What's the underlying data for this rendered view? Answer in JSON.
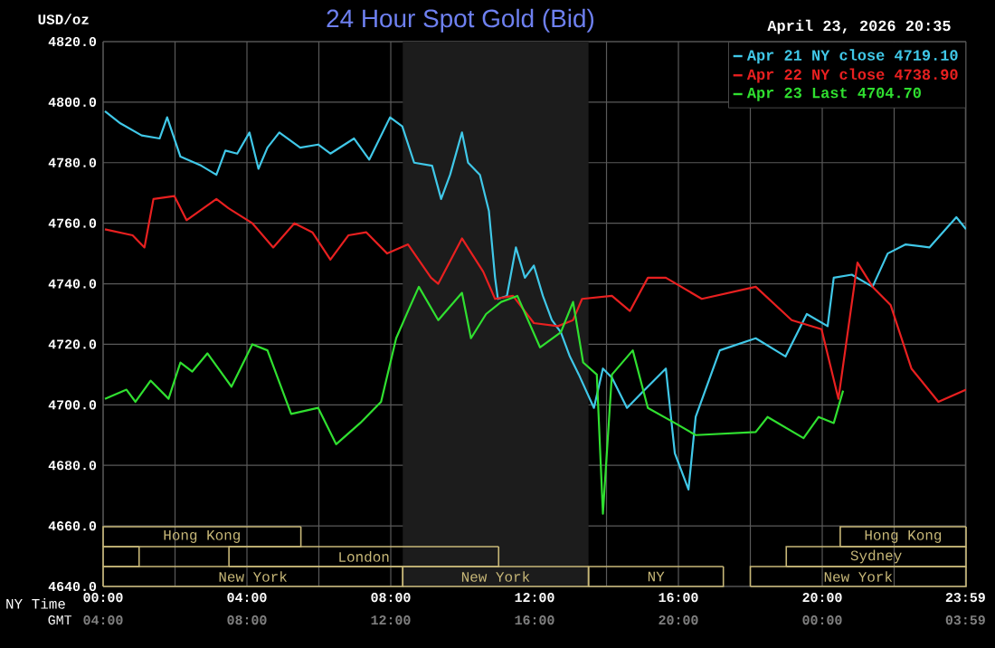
{
  "chart_data": {
    "type": "line",
    "title": "24 Hour Spot Gold (Bid)",
    "subtitle": "April 23, 2026 20:35",
    "ylabel": "USD/oz",
    "xlabel": "NY Time",
    "xlim": [
      0,
      24
    ],
    "ylim": [
      4640,
      4820
    ],
    "xticks": [
      {
        "value": 0,
        "label": "00:00"
      },
      {
        "value": 2,
        "label": null
      },
      {
        "value": 4,
        "label": "04:00"
      },
      {
        "value": 6,
        "label": null
      },
      {
        "value": 8,
        "label": "08:00"
      },
      {
        "value": 10,
        "label": null
      },
      {
        "value": 12,
        "label": "12:00"
      },
      {
        "value": 14,
        "label": null
      },
      {
        "value": 16,
        "label": "16:00"
      },
      {
        "value": 18,
        "label": null
      },
      {
        "value": 20,
        "label": "20:00"
      },
      {
        "value": 22,
        "label": null
      },
      {
        "value": 23.983,
        "label": "23:59"
      }
    ],
    "yticks": [
      {
        "value": 4640,
        "label": "4640.0"
      },
      {
        "value": 4660,
        "label": "4660.0"
      },
      {
        "value": 4680,
        "label": "4680.0"
      },
      {
        "value": 4700,
        "label": "4700.0"
      },
      {
        "value": 4720,
        "label": "4720.0"
      },
      {
        "value": 4740,
        "label": "4740.0"
      },
      {
        "value": 4760,
        "label": "4760.0"
      },
      {
        "value": 4780,
        "label": "4780.0"
      },
      {
        "value": 4800,
        "label": "4800.0"
      },
      {
        "value": 4820,
        "label": "4820.0"
      }
    ],
    "grid": true,
    "legend": "top right",
    "bands": [
      {
        "axis": "x",
        "from": 8.333,
        "to": 13.5,
        "color": "#1c1c1c"
      }
    ],
    "annotations": [
      "New York",
      "New York",
      "NY",
      "New York",
      "London",
      "Sydney",
      "Hong Kong",
      "Hong Kong",
      "GMT",
      "04:00",
      "08:00",
      "12:00",
      "16:00",
      "20:00",
      "00:00",
      "03:59"
    ],
    "series": [
      {
        "name": "Apr 21 NY close 4719.10",
        "color": "#40c8e8",
        "x": [
          0.05,
          0.48,
          1.07,
          1.57,
          1.78,
          2.15,
          2.73,
          3.15,
          3.4,
          3.73,
          4.07,
          4.32,
          4.57,
          4.9,
          5.48,
          5.98,
          6.32,
          6.98,
          7.4,
          7.98,
          8.32,
          8.65,
          9.15,
          9.4,
          9.65,
          9.98,
          10.15,
          10.48,
          10.73,
          10.9,
          10.98,
          11.23,
          11.48,
          11.73,
          11.98,
          12.23,
          12.48,
          12.73,
          12.98,
          13.23,
          13.65,
          13.9,
          14.15,
          14.57,
          14.98,
          15.65,
          15.9,
          16.28,
          16.48,
          17.15,
          18.15,
          18.98,
          19.57,
          20.15,
          20.32,
          20.82,
          21.4,
          21.82,
          22.32,
          22.98,
          23.73,
          24
        ],
        "values": [
          4797,
          4793,
          4789,
          4788,
          4795,
          4782,
          4779,
          4776,
          4784,
          4783,
          4790,
          4778,
          4785,
          4790,
          4785,
          4786,
          4783,
          4788,
          4781,
          4795,
          4792,
          4780,
          4779,
          4768,
          4776,
          4790,
          4780,
          4776,
          4764,
          4742,
          4735,
          4736,
          4752,
          4742,
          4746,
          4736,
          4728,
          4724,
          4716,
          4710,
          4699,
          4712,
          4709,
          4699,
          4704,
          4712,
          4684,
          4672,
          4696,
          4718,
          4722,
          4716,
          4730,
          4726,
          4742,
          4743,
          4739,
          4750,
          4753,
          4752,
          4762,
          4758
        ]
      },
      {
        "name": "Apr 22 NY close 4738.90",
        "color": "#e82020",
        "x": [
          0.05,
          0.82,
          1.15,
          1.4,
          1.98,
          2.32,
          3.15,
          3.48,
          4.15,
          4.73,
          5.32,
          5.82,
          6.32,
          6.82,
          7.32,
          7.9,
          8.48,
          9.12,
          9.32,
          9.98,
          10.57,
          10.9,
          11.4,
          11.98,
          12.65,
          13.07,
          13.32,
          14.15,
          14.65,
          15.15,
          15.65,
          16.65,
          18.15,
          19.15,
          19.98,
          20.45,
          20.98,
          21.4,
          21.9,
          22.48,
          23.23,
          24
        ],
        "values": [
          4758,
          4756,
          4752,
          4768,
          4769,
          4761,
          4768,
          4765,
          4760,
          4752,
          4760,
          4757,
          4748,
          4756,
          4757,
          4750,
          4753,
          4742,
          4740,
          4755,
          4744,
          4735,
          4736,
          4727,
          4726,
          4728,
          4735,
          4736,
          4731,
          4742,
          4742,
          4735,
          4739,
          4728,
          4725,
          4702,
          4747,
          4739,
          4733,
          4712,
          4701,
          4705
        ]
      },
      {
        "name": "Apr 23 Last 4704.70",
        "color": "#30e030",
        "x": [
          0.05,
          0.65,
          0.9,
          1.32,
          1.82,
          2.15,
          2.48,
          2.9,
          3.57,
          4.15,
          4.57,
          5.23,
          5.98,
          6.48,
          7.15,
          7.73,
          8.15,
          8.48,
          8.78,
          9.32,
          9.98,
          10.23,
          10.65,
          11.07,
          11.52,
          12.15,
          12.73,
          13.07,
          13.35,
          13.73,
          13.9,
          14.15,
          14.73,
          15.15,
          15.9,
          16.48,
          18.15,
          18.48,
          19.48,
          19.9,
          20.32,
          20.58
        ],
        "values": [
          4702,
          4705,
          4701,
          4708,
          4702,
          4714,
          4711,
          4717,
          4706,
          4720,
          4718,
          4697,
          4699,
          4687,
          4694,
          4701,
          4722,
          4731,
          4739,
          4728,
          4737,
          4722,
          4730,
          4734,
          4736,
          4719,
          4724,
          4734,
          4714,
          4710,
          4664,
          4710,
          4718,
          4699,
          4694,
          4690,
          4691,
          4696,
          4689,
          4696,
          4694,
          4704.7
        ]
      }
    ]
  }
}
